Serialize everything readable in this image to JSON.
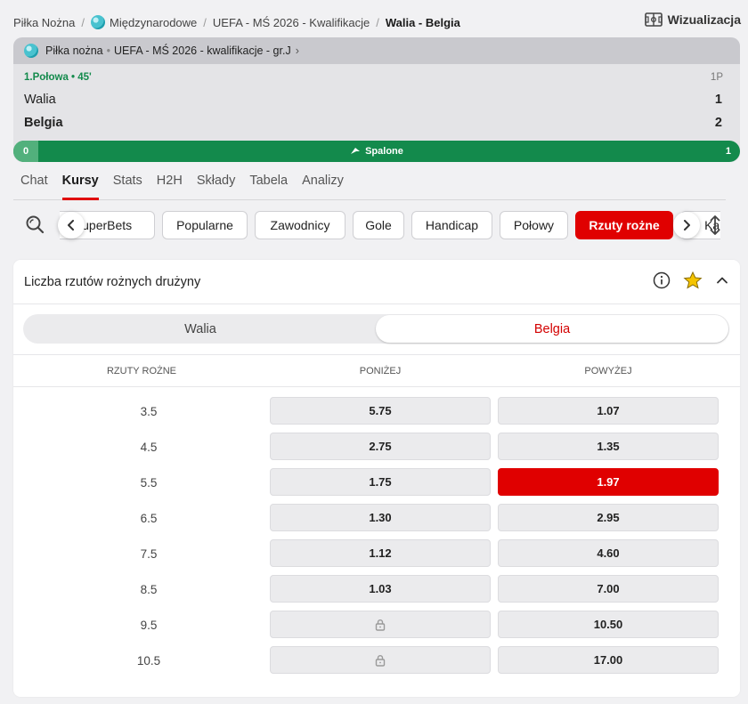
{
  "breadcrumb": [
    {
      "label": "Piłka Nożna",
      "globe": false
    },
    {
      "label": "Międzynarodowe",
      "globe": true
    },
    {
      "label": "UEFA - MŚ 2026 - Kwalifikacje",
      "globe": false
    },
    {
      "label": "Walia - Belgia",
      "globe": false,
      "current": true
    }
  ],
  "visualization_label": "Wizualizacja",
  "scorecard": {
    "sport": "Piłka nożna",
    "competition": "UEFA - MŚ 2026 - kwalifikacje - gr.J",
    "period": "1.Połowa • 45'",
    "period_header": "1P",
    "home_team": "Walia",
    "away_team": "Belgia",
    "home_score": "1",
    "away_score": "2",
    "stat_label": "Spalone",
    "stat_home": "0",
    "stat_away": "1",
    "stat_home_share": 0
  },
  "tabs": [
    "Chat",
    "Kursy",
    "Stats",
    "H2H",
    "Składy",
    "Tabela",
    "Analizy"
  ],
  "active_tab": "Kursy",
  "chips": [
    "SuperBets",
    "Popularne",
    "Zawodnicy",
    "Gole",
    "Handicap",
    "Połowy",
    "Rzuty rożne",
    "Kartki"
  ],
  "active_chip": "Rzuty rożne",
  "market": {
    "title": "Liczba rzutów rożnych drużyny",
    "team_options": [
      "Walia",
      "Belgia"
    ],
    "selected_team": "Belgia",
    "columns": [
      "RZUTY ROŻNE",
      "PONIŻEJ",
      "POWYŻEJ"
    ],
    "rows": [
      {
        "line": "3.5",
        "under": "5.75",
        "over": "1.07"
      },
      {
        "line": "4.5",
        "under": "2.75",
        "over": "1.35"
      },
      {
        "line": "5.5",
        "under": "1.75",
        "over": "1.97",
        "selected": "over"
      },
      {
        "line": "6.5",
        "under": "1.30",
        "over": "2.95"
      },
      {
        "line": "7.5",
        "under": "1.12",
        "over": "4.60"
      },
      {
        "line": "8.5",
        "under": "1.03",
        "over": "7.00"
      },
      {
        "line": "9.5",
        "under": null,
        "over": "10.50"
      },
      {
        "line": "10.5",
        "under": null,
        "over": "17.00"
      }
    ]
  },
  "colors": {
    "accent": "#e00000",
    "live_green": "#138a4c",
    "favorite": "#f5c400"
  }
}
